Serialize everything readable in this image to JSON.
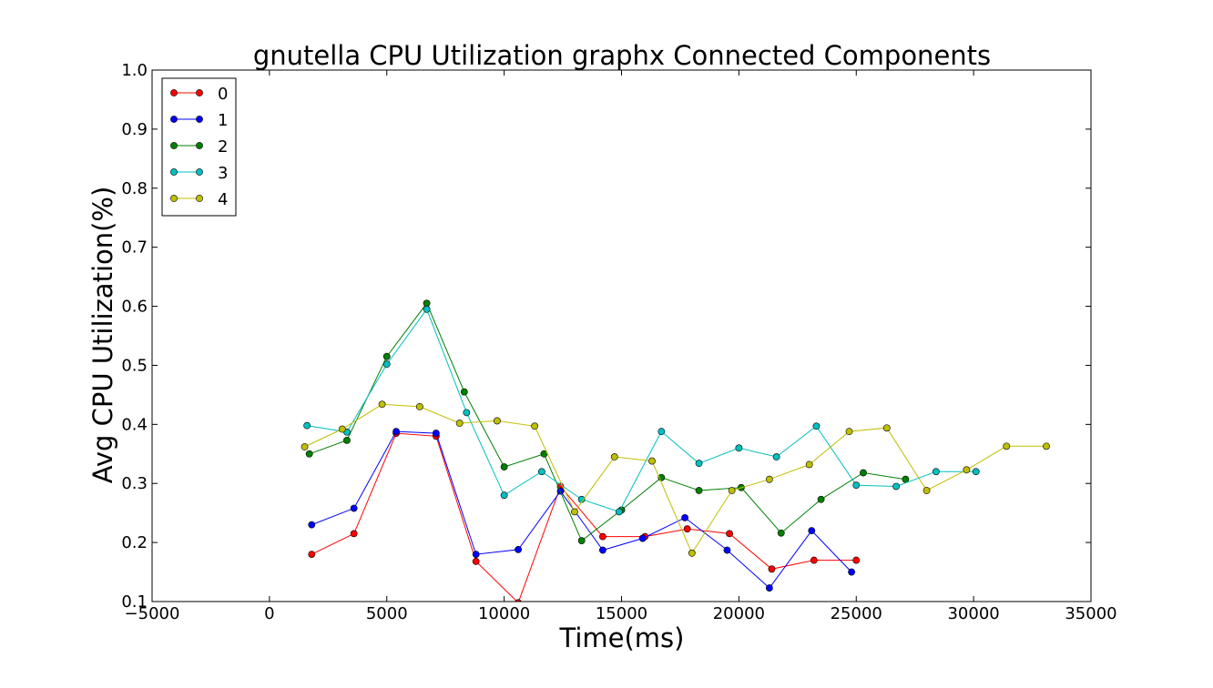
{
  "chart_data": {
    "type": "line",
    "title": "gnutella CPU Utilization graphx Connected Components",
    "xlabel": "Time(ms)",
    "ylabel": "Avg CPU Utilization(%)",
    "xlim": [
      -5000,
      35000
    ],
    "ylim": [
      0.1,
      1.0
    ],
    "xticks": [
      -5000,
      0,
      5000,
      10000,
      15000,
      20000,
      25000,
      30000,
      35000
    ],
    "xtick_labels": [
      "−5000",
      "0",
      "5000",
      "10000",
      "15000",
      "20000",
      "25000",
      "30000",
      "35000"
    ],
    "yticks": [
      0.1,
      0.2,
      0.3,
      0.4,
      0.5,
      0.6,
      0.7,
      0.8,
      0.9,
      1.0
    ],
    "ytick_labels": [
      "0.1",
      "0.2",
      "0.3",
      "0.4",
      "0.5",
      "0.6",
      "0.7",
      "0.8",
      "0.9",
      "1.0"
    ],
    "grid": false,
    "legend_position": "top-left",
    "series": [
      {
        "name": "0",
        "color": "#ff0000",
        "x": [
          1800,
          3600,
          5400,
          7100,
          8800,
          10600,
          12400,
          14200,
          16000,
          17800,
          19600,
          21400,
          23200,
          25000
        ],
        "y": [
          0.18,
          0.215,
          0.385,
          0.38,
          0.168,
          0.098,
          0.295,
          0.21,
          0.21,
          0.223,
          0.215,
          0.155,
          0.17,
          0.17
        ]
      },
      {
        "name": "1",
        "color": "#0000ff",
        "x": [
          1800,
          3600,
          5400,
          7100,
          8800,
          10600,
          12400,
          14200,
          15900,
          17700,
          19500,
          21300,
          23100,
          24800
        ],
        "y": [
          0.23,
          0.258,
          0.388,
          0.385,
          0.18,
          0.188,
          0.287,
          0.187,
          0.207,
          0.242,
          0.187,
          0.123,
          0.22,
          0.15
        ]
      },
      {
        "name": "2",
        "color": "#008000",
        "x": [
          1700,
          3300,
          5000,
          6700,
          8300,
          10000,
          11700,
          13300,
          15000,
          16700,
          18300,
          20100,
          21800,
          23500,
          25300,
          27100
        ],
        "y": [
          0.35,
          0.373,
          0.515,
          0.605,
          0.455,
          0.328,
          0.35,
          0.203,
          0.255,
          0.31,
          0.288,
          0.293,
          0.216,
          0.273,
          0.318,
          0.307
        ]
      },
      {
        "name": "3",
        "color": "#00bfbf",
        "x": [
          1600,
          3300,
          5000,
          6700,
          8400,
          10000,
          11600,
          13300,
          14900,
          16700,
          18300,
          20000,
          21600,
          23300,
          25000,
          26700,
          28400,
          30100
        ],
        "y": [
          0.398,
          0.387,
          0.502,
          0.595,
          0.42,
          0.28,
          0.32,
          0.273,
          0.252,
          0.388,
          0.334,
          0.36,
          0.345,
          0.397,
          0.297,
          0.295,
          0.32,
          0.32
        ]
      },
      {
        "name": "4",
        "color": "#bfbf00",
        "x": [
          1500,
          3100,
          4800,
          6400,
          8100,
          9700,
          11300,
          13000,
          14700,
          16300,
          18000,
          19700,
          21300,
          23000,
          24700,
          26300,
          28000,
          29700,
          31400,
          33100
        ],
        "y": [
          0.362,
          0.392,
          0.434,
          0.43,
          0.402,
          0.406,
          0.397,
          0.252,
          0.345,
          0.338,
          0.182,
          0.288,
          0.307,
          0.332,
          0.388,
          0.394,
          0.288,
          0.323,
          0.363,
          0.363
        ]
      }
    ]
  }
}
